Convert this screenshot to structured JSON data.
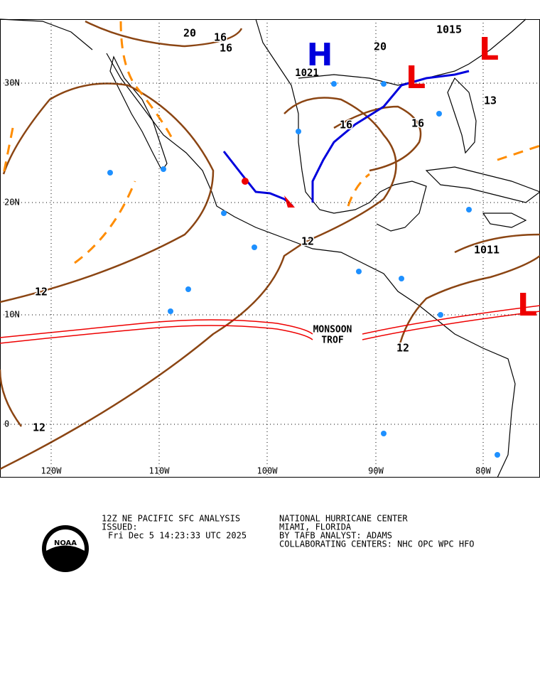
{
  "map": {
    "lat_labels": [
      "30N",
      "20N",
      "10N",
      "0"
    ],
    "lon_labels": [
      "120W",
      "110W",
      "100W",
      "90W",
      "80W"
    ],
    "isobar_labels": [
      "20",
      "16",
      "16",
      "20",
      "1015",
      "16",
      "16",
      "13",
      "12",
      "12",
      "12",
      "12",
      "1011"
    ],
    "highs": [
      {
        "symbol": "H",
        "pressure": "1021"
      }
    ],
    "lows": [
      {
        "symbol": "L"
      },
      {
        "symbol": "L"
      },
      {
        "symbol": "L"
      }
    ],
    "feature_label": [
      "MONSOON",
      "TROF"
    ]
  },
  "footer": {
    "logo": "NOAA",
    "left": [
      "12Z NE PACIFIC SFC ANALYSIS",
      "ISSUED:",
      "Fri Dec 5 14:23:33 UTC 2025"
    ],
    "right": [
      "NATIONAL HURRICANE CENTER",
      "MIAMI, FLORIDA",
      "BY TAFB ANALYST: ADAMS",
      "COLLABORATING CENTERS: NHC OPC WPC HFO"
    ]
  }
}
